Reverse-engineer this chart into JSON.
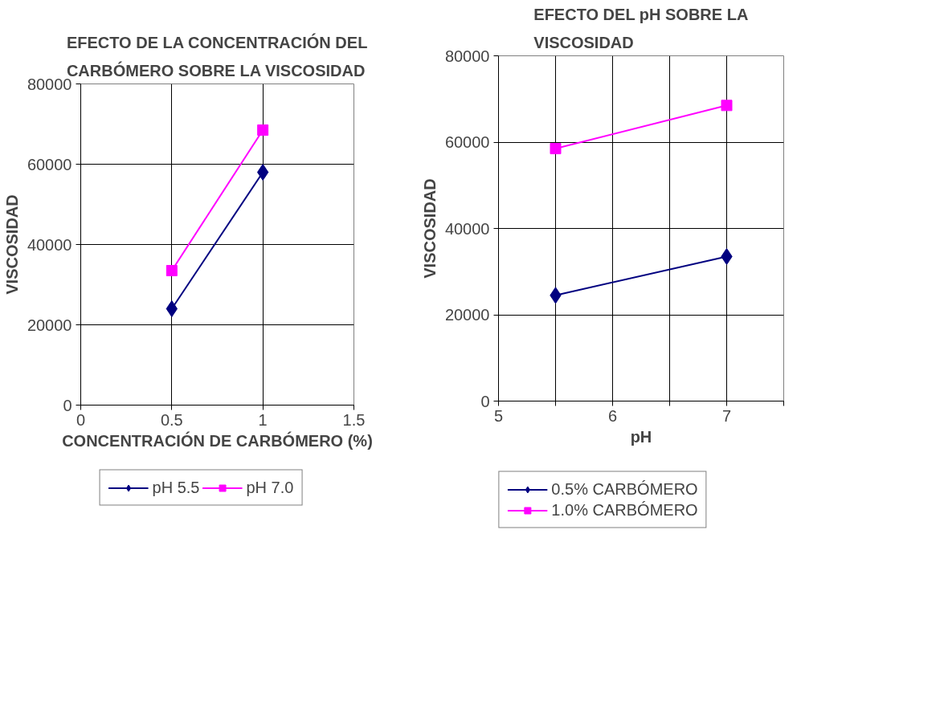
{
  "chart_data": [
    {
      "type": "line",
      "title": "EFECTO DE LA CONCENTRACIÓN DEL CARBÓMERO SOBRE LA VISCOSIDAD",
      "xlabel": "CONCENTRACIÓN DE CARBÓMERO (%)",
      "ylabel": "VISCOSIDAD",
      "x": [
        0.5,
        1
      ],
      "series": [
        {
          "name": "pH 5.5",
          "color": "#000080",
          "marker": "diamond",
          "values": [
            24000,
            58000
          ]
        },
        {
          "name": "pH 7.0",
          "color": "#ff00ff",
          "marker": "square",
          "values": [
            33500,
            68500
          ]
        }
      ],
      "xlim": [
        0,
        1.5
      ],
      "xticks": [
        0,
        0.5,
        1,
        1.5
      ],
      "ylim": [
        0,
        80000
      ],
      "yticks": [
        0,
        20000,
        40000,
        60000,
        80000
      ],
      "grid": true,
      "legend": "bottom",
      "line_style": "solid"
    },
    {
      "type": "line",
      "title": "EFECTO DEL pH SOBRE LA VISCOSIDAD",
      "xlabel": "pH",
      "ylabel": "VISCOSIDAD",
      "x": [
        5.5,
        7
      ],
      "series": [
        {
          "name": "0.5% CARBÓMERO",
          "color": "#000080",
          "marker": "diamond",
          "values": [
            24500,
            33500
          ]
        },
        {
          "name": "1.0% CARBÓMERO",
          "color": "#ff00ff",
          "marker": "square",
          "values": [
            58500,
            68500
          ]
        }
      ],
      "xlim": [
        5,
        7.5
      ],
      "xticks": [
        5,
        {
          "value": 5.5,
          "label": null
        },
        6,
        {
          "value": 6.5,
          "label": null
        },
        7,
        {
          "value": 7.5,
          "label": null
        }
      ],
      "ylim": [
        0,
        80000
      ],
      "yticks": [
        0,
        20000,
        40000,
        60000,
        80000
      ],
      "grid": true,
      "legend": "bottom",
      "line_style": "solid"
    }
  ]
}
